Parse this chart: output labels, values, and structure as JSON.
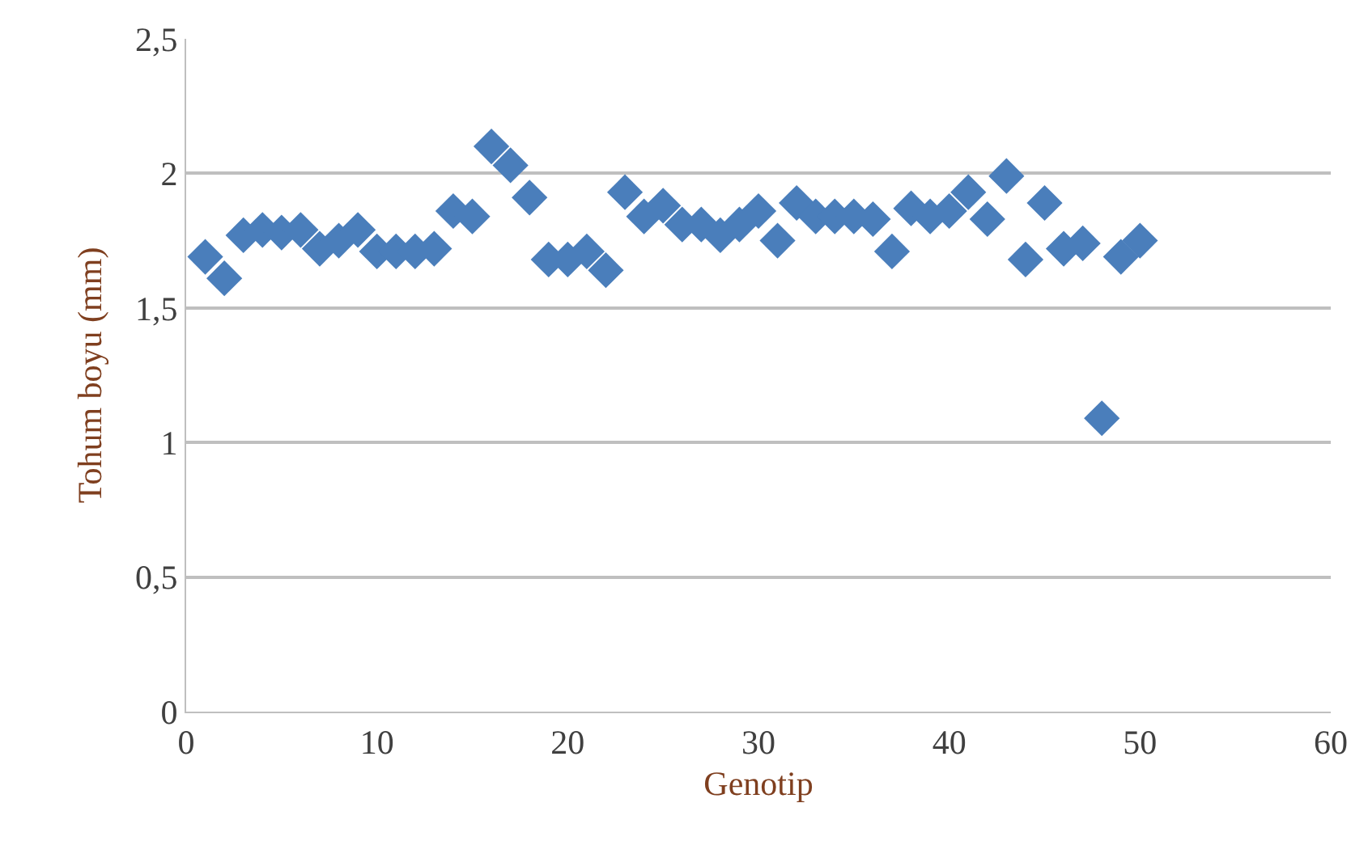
{
  "chart_data": {
    "type": "scatter",
    "xlabel": "Genotip",
    "ylabel": "Tohum boyu (mm)",
    "x": [
      1,
      2,
      3,
      4,
      5,
      6,
      7,
      8,
      9,
      10,
      11,
      12,
      13,
      14,
      15,
      16,
      17,
      18,
      19,
      20,
      21,
      22,
      23,
      24,
      25,
      26,
      27,
      28,
      29,
      30,
      31,
      32,
      33,
      34,
      35,
      36,
      37,
      38,
      39,
      40,
      41,
      42,
      43,
      44,
      45,
      46,
      47,
      48,
      49,
      50
    ],
    "series": [
      {
        "color": "#4a7ebb",
        "values": [
          1.69,
          1.61,
          1.77,
          1.79,
          1.78,
          1.79,
          1.72,
          1.75,
          1.79,
          1.71,
          1.71,
          1.71,
          1.72,
          1.86,
          1.84,
          2.1,
          2.03,
          1.91,
          1.68,
          1.68,
          1.71,
          1.64,
          1.93,
          1.84,
          1.88,
          1.81,
          1.81,
          1.77,
          1.81,
          1.86,
          1.75,
          1.89,
          1.84,
          1.84,
          1.84,
          1.83,
          1.71,
          1.87,
          1.84,
          1.86,
          1.93,
          1.83,
          1.99,
          1.68,
          1.89,
          1.72,
          1.74,
          1.09,
          1.69,
          1.75
        ]
      }
    ],
    "xlim": [
      0,
      60
    ],
    "xticks": [
      0,
      10,
      20,
      30,
      40,
      50,
      60
    ],
    "ylim": [
      0,
      2.5
    ],
    "yticks": [
      {
        "value": 0,
        "label": "0"
      },
      {
        "value": 0.5,
        "label": "0,5"
      },
      {
        "value": 1,
        "label": "1"
      },
      {
        "value": 1.5,
        "label": "1,5"
      },
      {
        "value": 2,
        "label": "2"
      },
      {
        "value": 2.5,
        "label": "2,5"
      }
    ],
    "grid": "y",
    "marker": "diamond"
  }
}
